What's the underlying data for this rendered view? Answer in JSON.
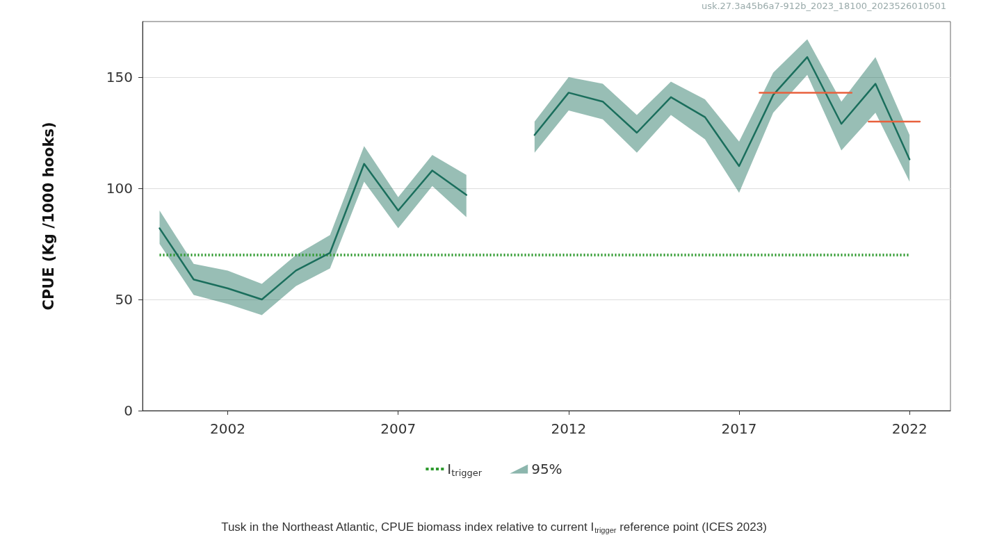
{
  "chart_data": {
    "type": "line",
    "ylabel": "CPUE (Kg /1000 hooks)",
    "x": [
      2000,
      2001,
      2002,
      2003,
      2004,
      2005,
      2006,
      2007,
      2008,
      2009,
      2010,
      2011,
      2012,
      2013,
      2014,
      2015,
      2016,
      2017,
      2018,
      2019,
      2020,
      2021,
      2022
    ],
    "series": [
      {
        "name": "I$_{trigger}$",
        "color": "#2e9a2e",
        "line_style": "dotted",
        "x": [
          2000,
          2022
        ],
        "values": [
          70,
          70
        ]
      },
      {
        "name": "95%",
        "color": "#1a6e5c",
        "values": [
          82,
          59,
          55,
          50,
          63,
          71,
          111,
          90,
          108,
          97,
          null,
          124,
          143,
          139,
          125,
          141,
          132,
          110,
          142,
          159,
          129,
          147,
          113
        ],
        "lower": [
          75,
          52,
          48,
          43,
          56,
          64,
          103,
          82,
          101,
          87,
          null,
          116,
          135,
          131,
          116,
          133,
          122,
          98,
          134,
          151,
          117,
          134,
          103
        ],
        "upper": [
          90,
          66,
          63,
          57,
          70,
          79,
          119,
          96,
          115,
          106,
          null,
          130,
          150,
          147,
          133,
          148,
          140,
          121,
          152,
          167,
          139,
          159,
          124
        ]
      },
      {
        "color": "#e8603c",
        "x": [
          2017.6,
          2020.3
        ],
        "values": [
          143,
          143
        ]
      },
      {
        "color": "#e8603c",
        "x": [
          2020.8,
          2022.3
        ],
        "values": [
          130,
          130
        ]
      }
    ],
    "xlim": [
      1999.5,
      2023.2
    ],
    "xticks": [
      2002,
      2007,
      2012,
      2017,
      2022
    ],
    "ylim": [
      0,
      175
    ],
    "yticks": [
      0,
      50,
      100,
      150
    ],
    "grid": "y",
    "legend": "bottom",
    "marker": "none",
    "annotations": [
      "usk.27.3a45b6a7-912b_2023_18100_2023526010501",
      "Tusk in the Northeast Atlantic, CPUE biomass index relative to current I$_{trigger}$ reference point (ICES 2023)"
    ]
  }
}
